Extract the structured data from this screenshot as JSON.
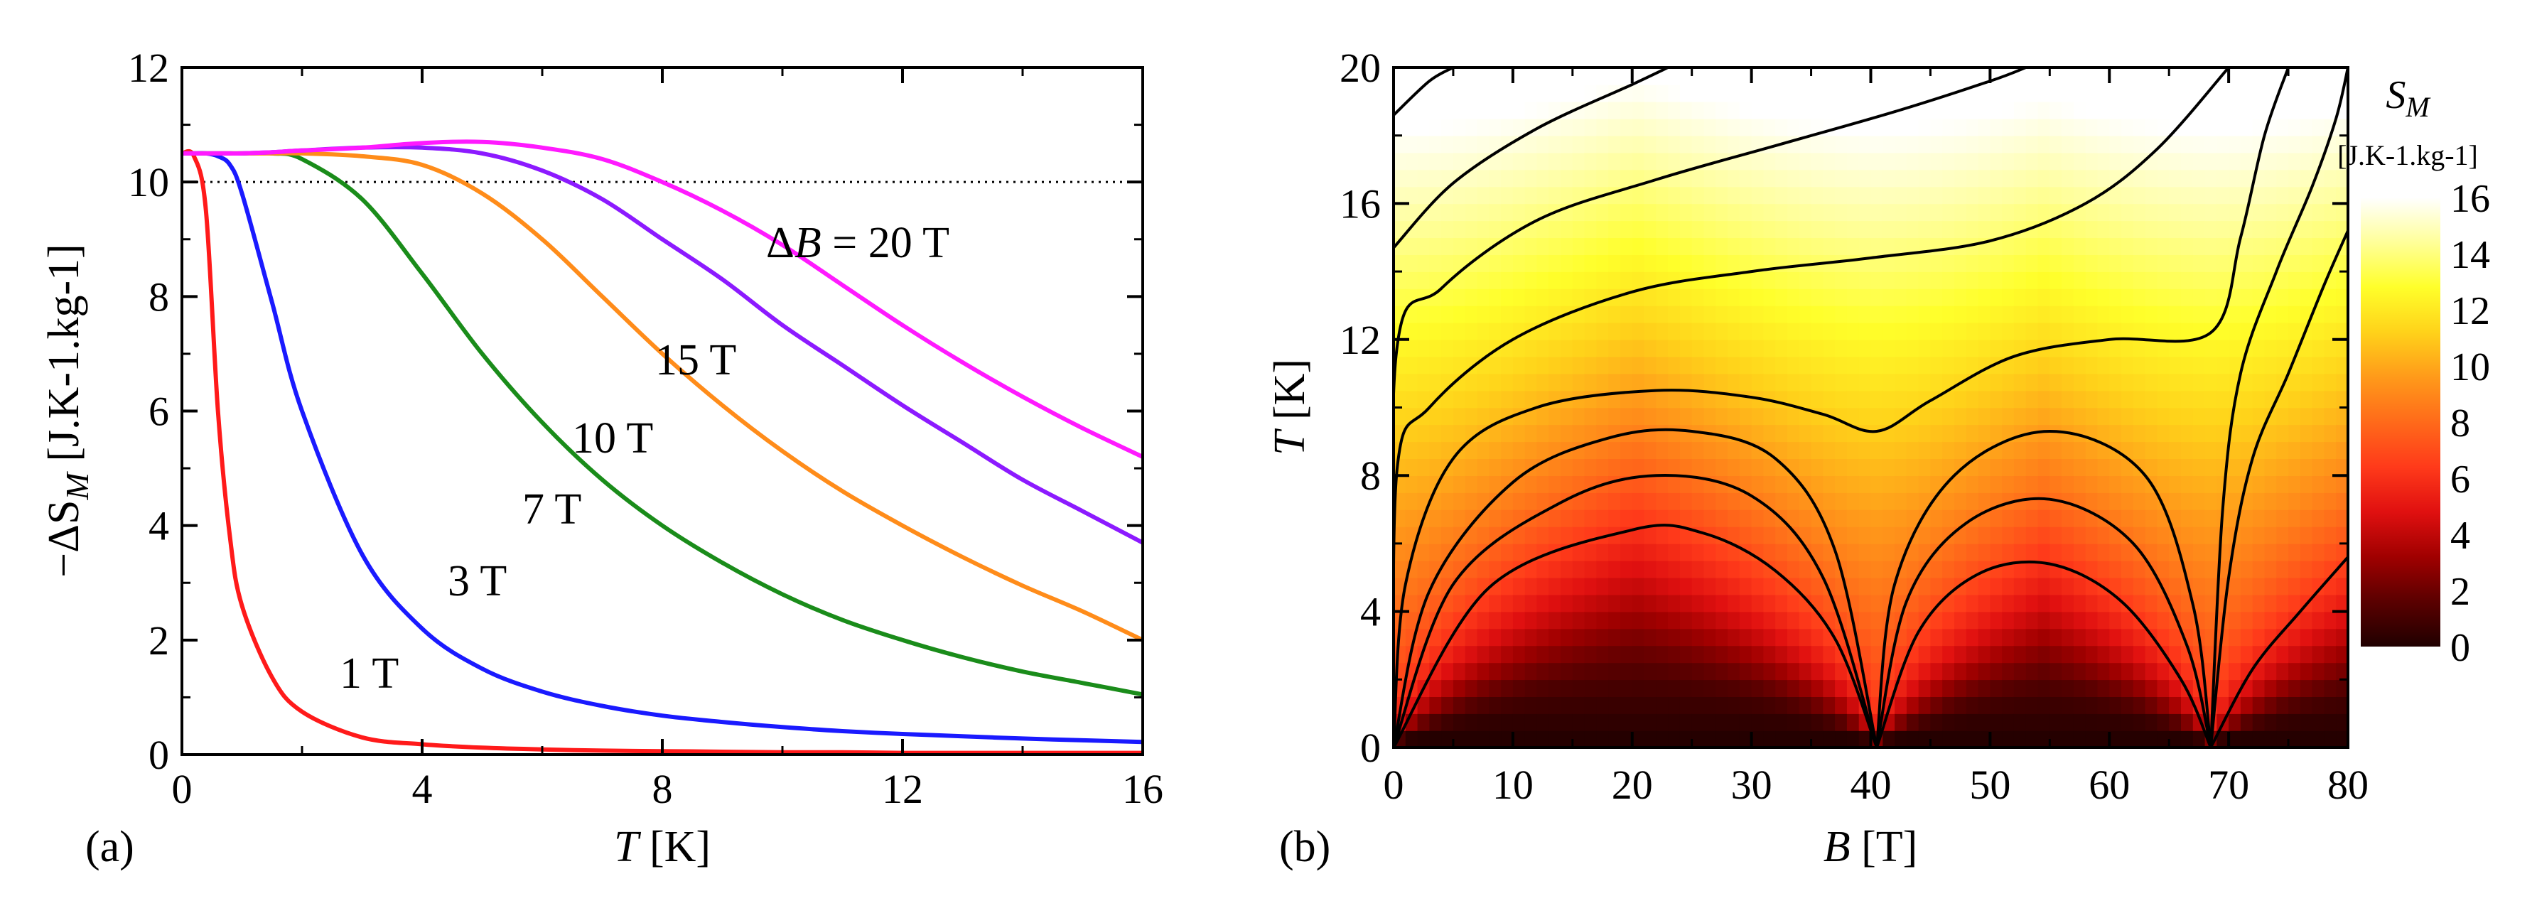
{
  "chart_data": [
    {
      "type": "line",
      "panel_label": "(a)",
      "ylabel_prefix": "−ΔS",
      "ylabel_sub": "M",
      "ylabel_units": "[J.K-1.kg-1]",
      "xlabel_var": "T",
      "xlabel_units": "[K]",
      "xlim": [
        0,
        16
      ],
      "ylim": [
        0,
        12
      ],
      "x_ticks": [
        "0",
        "4",
        "8",
        "12",
        "16"
      ],
      "y_ticks": [
        "0",
        "2",
        "4",
        "6",
        "8",
        "10",
        "12"
      ],
      "reference_line": {
        "y": 10,
        "style": "dotted"
      },
      "x": [
        0,
        0.2,
        0.4,
        0.6,
        0.8,
        1,
        1.5,
        2,
        3,
        4,
        5,
        6,
        7,
        8,
        9,
        10,
        11,
        12,
        13,
        14,
        15,
        16
      ],
      "series": [
        {
          "name": "1 T",
          "label": "1 T",
          "color": "#ff1a1a",
          "values": [
            10.5,
            10.45,
            9.5,
            6.0,
            3.8,
            2.6,
            1.35,
            0.75,
            0.3,
            0.18,
            0.12,
            0.09,
            0.07,
            0.06,
            0.05,
            0.04,
            0.04,
            0.03,
            0.03,
            0.03,
            0.03,
            0.03
          ]
        },
        {
          "name": "3 T",
          "label": "3 T",
          "color": "#1a1aff",
          "values": [
            10.5,
            10.5,
            10.5,
            10.45,
            10.3,
            9.8,
            7.9,
            6.0,
            3.5,
            2.2,
            1.5,
            1.1,
            0.85,
            0.68,
            0.57,
            0.48,
            0.41,
            0.36,
            0.32,
            0.28,
            0.25,
            0.22
          ]
        },
        {
          "name": "7 T",
          "label": "7 T",
          "color": "#1a8c1a",
          "values": [
            10.5,
            10.5,
            10.5,
            10.5,
            10.5,
            10.5,
            10.5,
            10.4,
            9.7,
            8.4,
            7.0,
            5.8,
            4.8,
            4.0,
            3.35,
            2.8,
            2.35,
            2.0,
            1.7,
            1.45,
            1.25,
            1.05
          ]
        },
        {
          "name": "10 T",
          "label": "10 T",
          "color": "#ff8c1a",
          "values": [
            10.5,
            10.5,
            10.5,
            10.5,
            10.5,
            10.5,
            10.5,
            10.5,
            10.45,
            10.3,
            9.8,
            9.0,
            8.0,
            7.0,
            6.1,
            5.3,
            4.6,
            4.0,
            3.45,
            2.95,
            2.5,
            2.0
          ]
        },
        {
          "name": "15 T",
          "label": "15 T",
          "color": "#8c1aff",
          "values": [
            10.5,
            10.5,
            10.5,
            10.5,
            10.5,
            10.5,
            10.52,
            10.55,
            10.6,
            10.6,
            10.5,
            10.2,
            9.7,
            9.0,
            8.3,
            7.5,
            6.8,
            6.1,
            5.45,
            4.8,
            4.25,
            3.7
          ]
        },
        {
          "name": "ΔB = 20 T",
          "label": "ΔB = 20 T",
          "color": "#ff1aff",
          "values": [
            10.5,
            10.5,
            10.5,
            10.5,
            10.5,
            10.5,
            10.52,
            10.55,
            10.6,
            10.68,
            10.7,
            10.6,
            10.4,
            10.0,
            9.5,
            8.9,
            8.2,
            7.5,
            6.85,
            6.25,
            5.7,
            5.2
          ]
        }
      ]
    },
    {
      "type": "heatmap",
      "panel_label": "(b)",
      "xlabel_var": "B",
      "xlabel_units": "[T]",
      "ylabel_var": "T",
      "ylabel_units": "[K]",
      "xlim": [
        0,
        80
      ],
      "ylim": [
        0,
        20
      ],
      "x_ticks": [
        "0",
        "10",
        "20",
        "30",
        "40",
        "50",
        "60",
        "70",
        "80"
      ],
      "y_ticks": [
        "0",
        "4",
        "8",
        "12",
        "16",
        "20"
      ],
      "level_crossings_B": [
        0,
        40.5,
        68.5
      ],
      "colorbar": {
        "label_var": "S",
        "label_sub": "M",
        "label_units": "[J.K-1.kg-1]",
        "range": [
          0,
          16
        ],
        "ticks": [
          "0",
          "2",
          "4",
          "6",
          "8",
          "10",
          "12",
          "14",
          "16"
        ],
        "colors": [
          "#200000",
          "#5a0000",
          "#a00000",
          "#e01010",
          "#ff3a1a",
          "#ff6a1a",
          "#ff9a1a",
          "#ffd21a",
          "#ffff2a",
          "#ffff99",
          "#ffffff"
        ]
      },
      "contours": [
        {
          "level": 1,
          "points": [
            [
              0,
              0
            ],
            [
              8,
              4.7
            ],
            [
              20,
              6.4
            ],
            [
              26,
              6.3
            ],
            [
              32,
              5.2
            ],
            [
              37,
              3.2
            ],
            [
              40.5,
              0
            ]
          ]
        },
        {
          "level": 1.5,
          "points": [
            [
              0,
              0
            ],
            [
              5,
              4.8
            ],
            [
              14,
              7.2
            ],
            [
              22,
              8.0
            ],
            [
              30,
              7.4
            ],
            [
              36,
              5.0
            ],
            [
              40.5,
              0
            ]
          ]
        },
        {
          "level": 2,
          "points": [
            [
              0,
              0
            ],
            [
              3,
              4.6
            ],
            [
              10,
              7.8
            ],
            [
              18,
              9.1
            ],
            [
              25,
              9.3
            ],
            [
              32,
              8.5
            ],
            [
              37,
              5.8
            ],
            [
              40.5,
              0
            ]
          ]
        },
        {
          "level": 1,
          "points": [
            [
              40.5,
              0
            ],
            [
              44,
              3.4
            ],
            [
              49,
              5.1
            ],
            [
              55,
              5.4
            ],
            [
              61,
              4.3
            ],
            [
              66,
              2.0
            ],
            [
              68.5,
              0
            ]
          ]
        },
        {
          "level": 1.5,
          "points": [
            [
              40.5,
              0
            ],
            [
              43,
              4.3
            ],
            [
              48,
              6.6
            ],
            [
              55,
              7.3
            ],
            [
              62,
              6.0
            ],
            [
              66.5,
              3.0
            ],
            [
              68.5,
              0
            ]
          ]
        },
        {
          "level": 2,
          "points": [
            [
              40.5,
              0
            ],
            [
              42,
              4.8
            ],
            [
              47,
              8.0
            ],
            [
              55,
              9.3
            ],
            [
              63,
              8.0
            ],
            [
              67,
              4.2
            ],
            [
              68.5,
              0
            ]
          ]
        },
        {
          "level": 2.5,
          "points": [
            [
              68.5,
              0
            ],
            [
              72,
              2.3
            ],
            [
              76,
              4.0
            ],
            [
              80,
              5.6
            ]
          ]
        },
        {
          "level": 3,
          "points": [
            [
              68.5,
              0
            ],
            [
              70,
              5.0
            ],
            [
              72,
              8.5
            ],
            [
              75,
              11.0
            ],
            [
              78,
              13.6
            ],
            [
              80,
              15.2
            ]
          ]
        },
        {
          "level": 3.5,
          "points": [
            [
              68.5,
              0
            ],
            [
              69.5,
              7.0
            ],
            [
              71,
              11.0
            ],
            [
              74,
              14.0
            ],
            [
              77,
              16.5
            ],
            [
              79,
              18.5
            ],
            [
              80,
              20
            ]
          ]
        },
        {
          "level": 3.5,
          "points": [
            [
              0,
              0
            ],
            [
              1,
              4.8
            ],
            [
              5,
              8.5
            ],
            [
              12,
              10.0
            ],
            [
              22,
              10.5
            ],
            [
              30,
              10.3
            ],
            [
              36,
              9.8
            ],
            [
              40.5,
              9.3
            ],
            [
              45,
              10.2
            ],
            [
              52,
              11.5
            ],
            [
              60,
              12.0
            ],
            [
              68.5,
              12.2
            ],
            [
              71,
              15.0
            ],
            [
              73,
              18.0
            ],
            [
              75,
              20
            ]
          ]
        },
        {
          "level": 4,
          "points": [
            [
              0,
              0
            ],
            [
              0.3,
              8.2
            ],
            [
              3,
              10.0
            ],
            [
              10,
              12.0
            ],
            [
              20,
              13.4
            ],
            [
              30,
              14.0
            ],
            [
              40,
              14.4
            ],
            [
              50,
              14.9
            ],
            [
              58,
              16.0
            ],
            [
              64,
              17.6
            ],
            [
              70,
              20
            ]
          ]
        },
        {
          "level": 4.5,
          "points": [
            [
              0,
              0
            ],
            [
              0.2,
              11.5
            ],
            [
              4,
              13.5
            ],
            [
              12,
              15.5
            ],
            [
              22,
              16.7
            ],
            [
              32,
              17.7
            ],
            [
              42,
              18.7
            ],
            [
              50,
              19.6
            ],
            [
              53,
              20
            ]
          ]
        },
        {
          "level": 5,
          "points": [
            [
              0,
              14.7
            ],
            [
              5,
              16.6
            ],
            [
              12,
              18.2
            ],
            [
              20,
              19.5
            ],
            [
              23,
              20
            ]
          ]
        },
        {
          "level": 5.5,
          "points": [
            [
              0,
              18.6
            ],
            [
              3,
              19.6
            ],
            [
              5,
              20
            ]
          ]
        }
      ]
    }
  ]
}
